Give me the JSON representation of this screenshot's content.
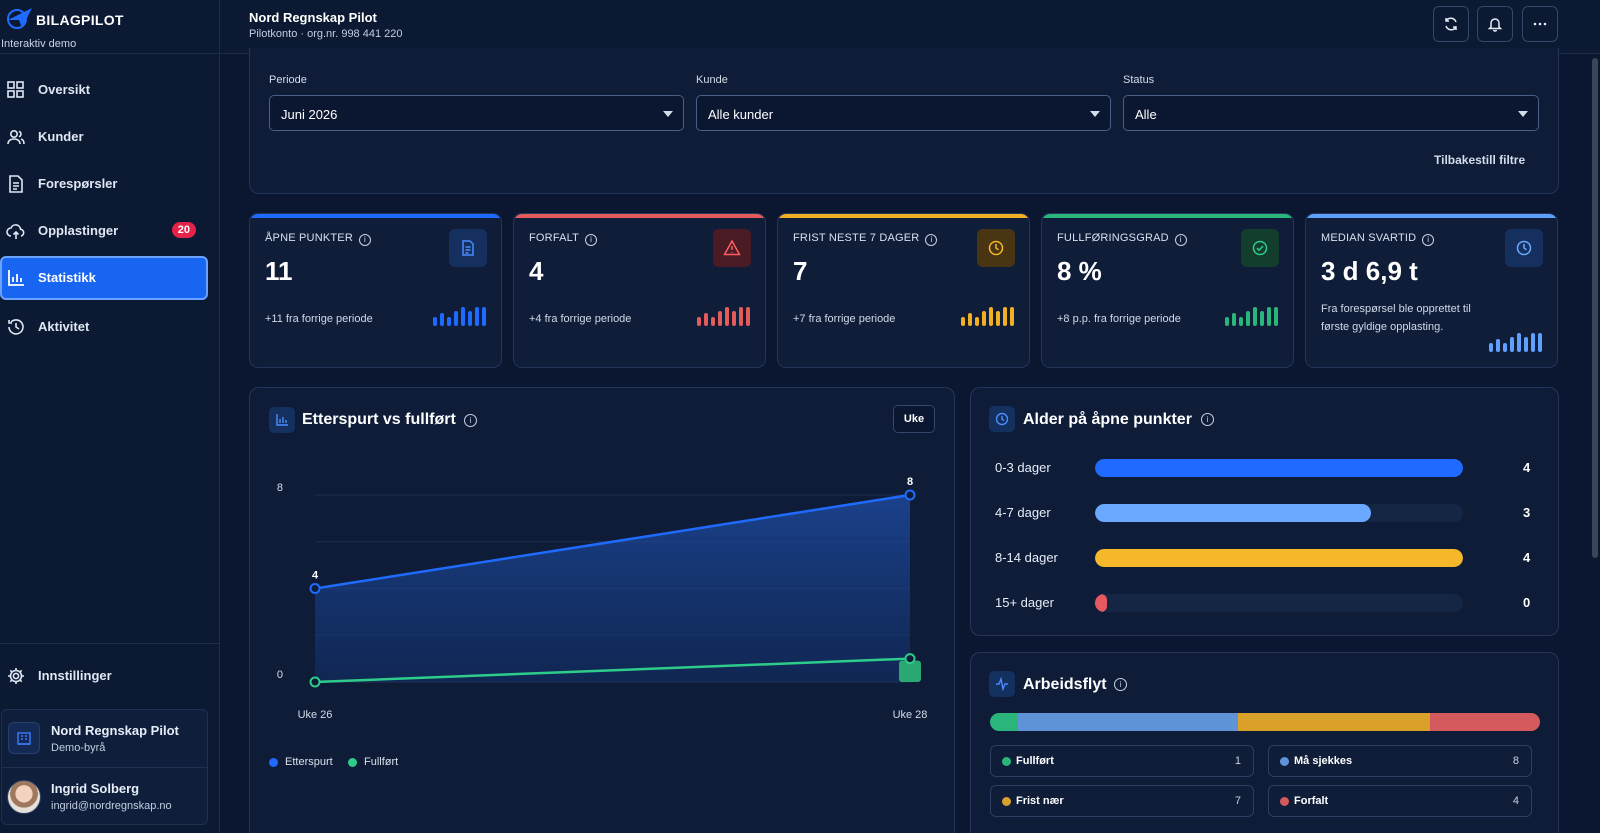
{
  "brand": {
    "name": "BILAGPILOT",
    "subtitle": "Interaktiv demo"
  },
  "nav": {
    "items": [
      {
        "label": "Oversikt",
        "icon": "grid-icon"
      },
      {
        "label": "Kunder",
        "icon": "users-icon"
      },
      {
        "label": "Forespørsler",
        "icon": "document-icon"
      },
      {
        "label": "Opplastinger",
        "icon": "upload-cloud-icon",
        "badge": "20"
      },
      {
        "label": "Statistikk",
        "icon": "bar-chart-icon",
        "active": true
      },
      {
        "label": "Aktivitet",
        "icon": "history-icon"
      }
    ],
    "settings_label": "Innstillinger"
  },
  "org": {
    "name": "Nord Regnskap Pilot",
    "type": "Demo-byrå"
  },
  "user": {
    "name": "Ingrid Solberg",
    "email": "ingrid@nordregnskap.no"
  },
  "header": {
    "title": "Nord Regnskap Pilot",
    "subtitle": "Pilotkonto · org.nr. 998 441 220"
  },
  "filters": {
    "periode": {
      "label": "Periode",
      "value": "Juni 2026"
    },
    "kunde": {
      "label": "Kunde",
      "value": "Alle kunder"
    },
    "status": {
      "label": "Status",
      "value": "Alle"
    },
    "reset_label": "Tilbakestill filtre"
  },
  "kpis": [
    {
      "label": "ÅPNE PUNKTER",
      "value": "11",
      "note": "+11 fra forrige periode",
      "color": "#1f6bff",
      "icon": "document-icon"
    },
    {
      "label": "FORFALT",
      "value": "4",
      "note": "+4 fra forrige periode",
      "color": "#e25c5c",
      "icon": "warning-icon"
    },
    {
      "label": "FRIST NESTE 7 DAGER",
      "value": "7",
      "note": "+7 fra forrige periode",
      "color": "#f1b024",
      "icon": "clock-icon"
    },
    {
      "label": "FULLFØRINGSGRAD",
      "value": "8 %",
      "note": "+8 p.p. fra forrige periode",
      "color": "#2ab67a",
      "icon": "check-circle-icon"
    },
    {
      "label": "MEDIAN SVARTID",
      "value": "3 d 6,9 t",
      "note": "Fra forespørsel ble opprettet til første gyldige opplasting.",
      "color": "#5fa0ff",
      "icon": "clock-icon"
    }
  ],
  "trend": {
    "title": "Etterspurt vs fullført",
    "toggle_label": "Uke",
    "chart_data": {
      "type": "line",
      "x": [
        "Uke 26",
        "Uke 28"
      ],
      "series": [
        {
          "name": "Etterspurt",
          "values": [
            4,
            8
          ],
          "color": "#1f6bff"
        },
        {
          "name": "Fullført",
          "values": [
            0,
            1
          ],
          "color": "#2ecc8a"
        }
      ],
      "ylim": [
        0,
        8
      ],
      "yticks": [
        "0",
        "8"
      ],
      "point_labels": [
        "4",
        "8"
      ],
      "legend": "bottom-left"
    }
  },
  "age": {
    "title": "Alder på åpne punkter",
    "rows": [
      {
        "label": "0-3 dager",
        "value": 4,
        "display": "4",
        "color": "#1f6bff"
      },
      {
        "label": "4-7 dager",
        "value": 3,
        "display": "3",
        "color": "#6aa9ff"
      },
      {
        "label": "8-14 dager",
        "value": 4,
        "display": "4",
        "color": "#f5b82a"
      },
      {
        "label": "15+ dager",
        "value": 0,
        "display": "0",
        "color": "#e8585f"
      }
    ]
  },
  "workflow": {
    "title": "Arbeidsflyt",
    "segments": [
      {
        "label": "Fullført",
        "value": 1,
        "display": "1",
        "color": "#2ab67a"
      },
      {
        "label": "Må sjekkes",
        "value": 8,
        "display": "8",
        "color": "#5f93d8"
      },
      {
        "label": "Frist nær",
        "value": 7,
        "display": "7",
        "color": "#d9a12a"
      },
      {
        "label": "Forfalt",
        "value": 4,
        "display": "4",
        "color": "#d45a5e"
      }
    ]
  }
}
